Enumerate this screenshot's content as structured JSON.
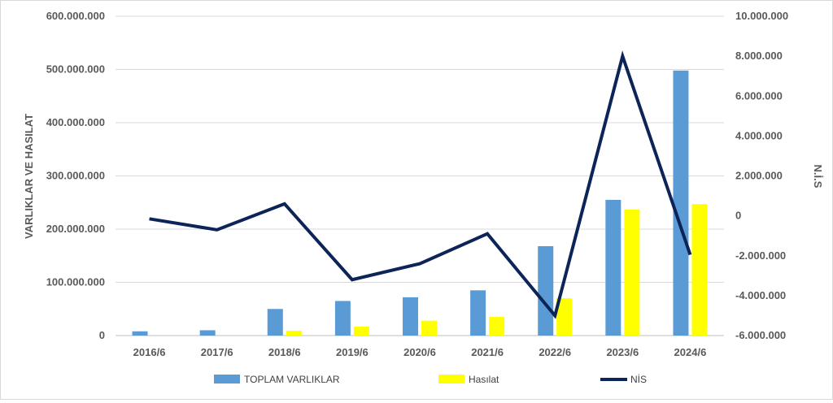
{
  "chart_data": {
    "type": "bar",
    "categories": [
      "2016/6",
      "2017/6",
      "2018/6",
      "2019/6",
      "2020/6",
      "2021/6",
      "2022/6",
      "2023/6",
      "2024/6"
    ],
    "series": [
      {
        "name": "TOPLAM VARLIKLAR",
        "type": "bar",
        "axis": "left",
        "color": "#5b9bd5",
        "values": [
          8000000,
          10000000,
          50000000,
          65000000,
          72000000,
          85000000,
          168000000,
          255000000,
          498000000
        ]
      },
      {
        "name": "Hasılat",
        "type": "bar",
        "axis": "left",
        "color": "#ffff00",
        "values": [
          null,
          null,
          9000000,
          17000000,
          28000000,
          35000000,
          70000000,
          237000000,
          247000000
        ]
      },
      {
        "name": "NİS",
        "type": "line",
        "axis": "right",
        "color": "#0d2459",
        "values": [
          -150000,
          -700000,
          600000,
          -3200000,
          -2400000,
          -900000,
          -5000000,
          8000000,
          -1950000
        ]
      }
    ],
    "ylabel": "VARLIKLAR VE HASILAT",
    "y2label": "N.İ.S",
    "ylim": [
      0,
      600000000
    ],
    "y2lim": [
      -6000000,
      10000000
    ],
    "yticks": [
      "0",
      "100.000.000",
      "200.000.000",
      "300.000.000",
      "400.000.000",
      "500.000.000",
      "600.000.000"
    ],
    "y2ticks": [
      "-6.000.000",
      "-4.000.000",
      "-2.000.000",
      "0",
      "2.000.000",
      "4.000.000",
      "6.000.000",
      "8.000.000",
      "10.000.000"
    ],
    "grid": true,
    "legend": "bottom"
  }
}
